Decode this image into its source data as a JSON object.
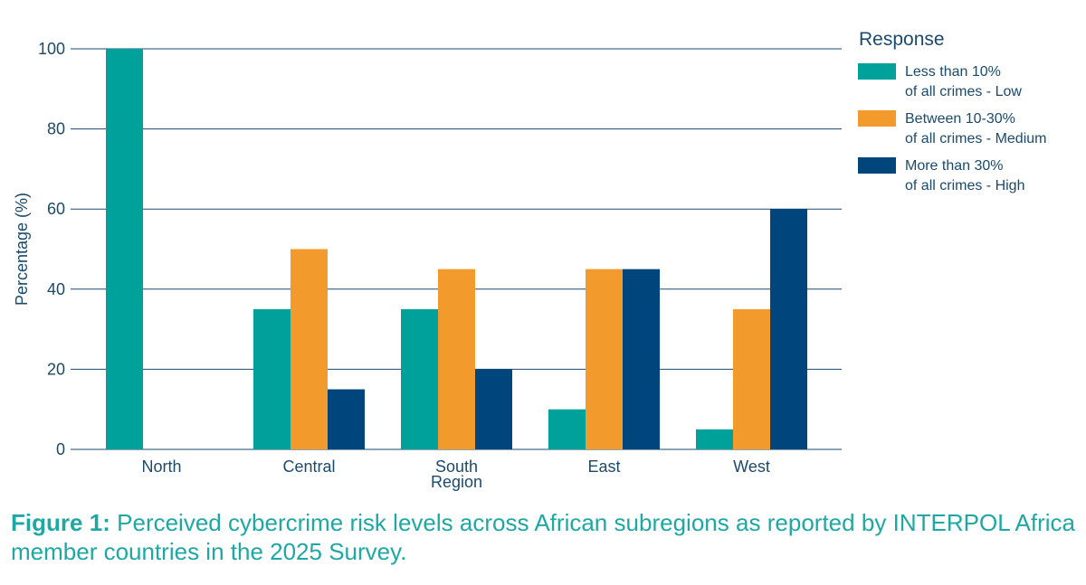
{
  "chart_data": {
    "type": "bar",
    "categories": [
      "North",
      "Central",
      "South Region",
      "East",
      "West"
    ],
    "category_lines": [
      [
        "North"
      ],
      [
        "Central"
      ],
      [
        "South",
        "Region"
      ],
      [
        "East"
      ],
      [
        "West"
      ]
    ],
    "series": [
      {
        "name": "Less than 10% of all crimes - Low",
        "name_lines": [
          "Less than 10%",
          "of all crimes - Low"
        ],
        "color": "#00a19a",
        "values": [
          100,
          35,
          35,
          10,
          5
        ]
      },
      {
        "name": "Between 10-30% of all crimes - Medium",
        "name_lines": [
          "Between 10-30%",
          "of all crimes - Medium"
        ],
        "color": "#f39a2c",
        "values": [
          0,
          50,
          45,
          45,
          35
        ]
      },
      {
        "name": "More than 30% of all crimes - High",
        "name_lines": [
          "More than 30%",
          "of all crimes - High"
        ],
        "color": "#00457c",
        "values": [
          0,
          15,
          20,
          45,
          60
        ]
      }
    ],
    "ylabel": "Percentage (%)",
    "xlabel": "",
    "ylim": [
      0,
      100
    ],
    "yticks": [
      0,
      20,
      40,
      60,
      80,
      100
    ],
    "legend_title": "Response",
    "legend_position": "right",
    "grid": true
  },
  "caption": {
    "label": "Figure 1:",
    "text": " Perceived cybercrime risk levels across African subregions as reported by INTERPOL Africa member countries in the 2025 Survey."
  }
}
